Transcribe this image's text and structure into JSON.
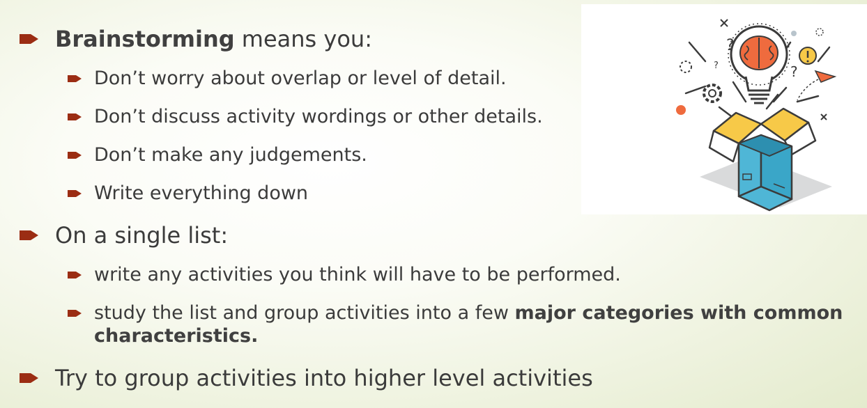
{
  "colors": {
    "bullet": "#9b2d13",
    "text": "#3b3b3b"
  },
  "illustration_icon": "lightbulb-brain-box-illustration",
  "bullets": {
    "b1": {
      "bold": "Brainstorming",
      "rest": " means you:"
    },
    "b1_1": "Don’t worry about overlap or level of detail.",
    "b1_2": "Don’t discuss activity wordings or other details.",
    "b1_3": "Don’t make any judgements.",
    "b1_4": "Write everything down",
    "b2": "On a single list:",
    "b2_1": "write any activities you think will have to be performed.",
    "b2_2": {
      "pre": "study the list and group activities into a few ",
      "bold": "major categories with common characteristics."
    },
    "b3": "Try to group activities into higher level activities"
  }
}
